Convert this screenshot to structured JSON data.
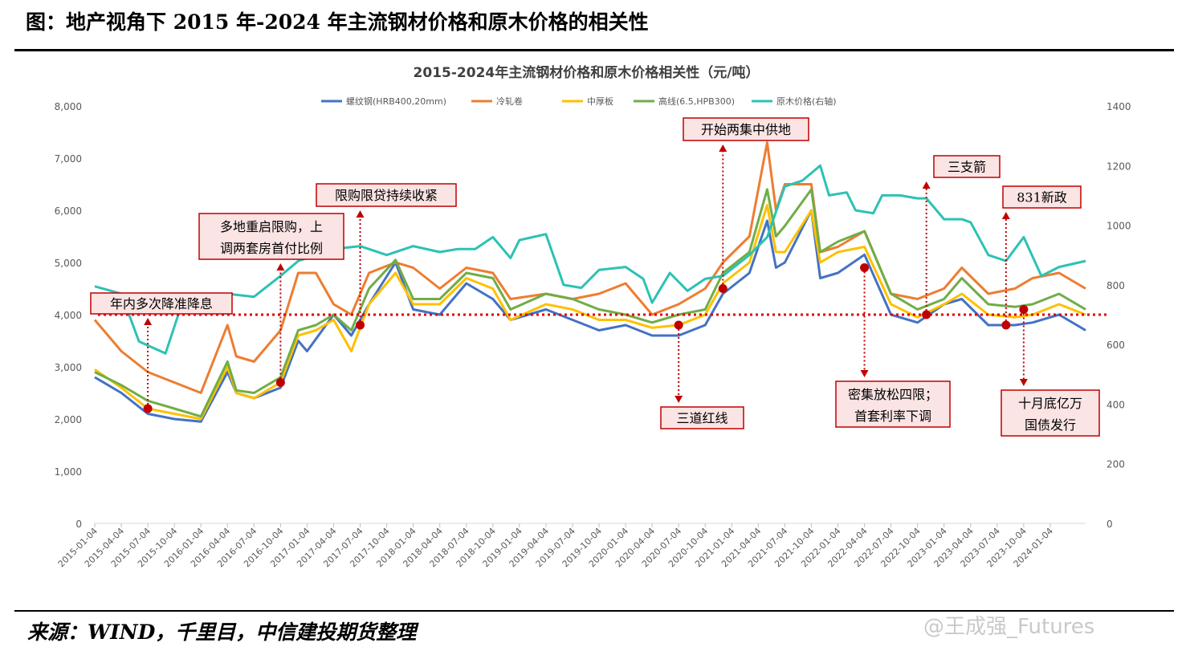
{
  "header": {
    "figure_title": "图：地产视角下 2015 年-2024 年主流钢材价格和原木价格的相关性",
    "source": "来源：WIND，千里目，中信建投期货整理",
    "watermark": "@王成强_Futures"
  },
  "chart_data": {
    "type": "line",
    "title": "2015-2024年主流钢材价格和原木价格相关性（元/吨）",
    "x_ticks": [
      "2015-01-04",
      "2015-04-04",
      "2015-07-04",
      "2015-10-04",
      "2016-01-04",
      "2016-04-04",
      "2016-07-04",
      "2016-10-04",
      "2017-01-04",
      "2017-04-04",
      "2017-07-04",
      "2017-10-04",
      "2018-01-04",
      "2018-04-04",
      "2018-07-04",
      "2018-10-04",
      "2019-01-04",
      "2019-04-04",
      "2019-07-04",
      "2019-10-04",
      "2020-01-04",
      "2020-04-04",
      "2020-07-04",
      "2020-10-04",
      "2021-01-04",
      "2021-04-04",
      "2021-07-04",
      "2021-10-04",
      "2022-01-04",
      "2022-04-04",
      "2022-07-04",
      "2022-10-04",
      "2023-01-04",
      "2023-04-04",
      "2023-07-04",
      "2023-10-04",
      "2024-01-04"
    ],
    "y_left": {
      "min": 0,
      "max": 8000,
      "ticks": [
        "0",
        "1,000",
        "2,000",
        "3,000",
        "4,000",
        "5,000",
        "6,000",
        "7,000",
        "8,000"
      ]
    },
    "y_right": {
      "min": 0,
      "max": 1400,
      "ticks": [
        "0",
        "200",
        "400",
        "600",
        "800",
        "1000",
        "1200",
        "1400"
      ]
    },
    "series": [
      {
        "name": "螺纹钢(HRB400,20mm)",
        "color": "#4472c4",
        "axis": "left",
        "x": [
          "2015-01",
          "2015-04",
          "2015-07",
          "2015-10",
          "2016-01",
          "2016-04",
          "2016-05",
          "2016-07",
          "2016-10",
          "2016-12",
          "2017-01",
          "2017-04",
          "2017-06",
          "2017-08",
          "2017-11",
          "2018-01",
          "2018-04",
          "2018-07",
          "2018-10",
          "2018-12",
          "2019-04",
          "2019-07",
          "2019-10",
          "2020-01",
          "2020-04",
          "2020-07",
          "2020-10",
          "2020-12",
          "2021-03",
          "2021-05",
          "2021-06",
          "2021-07",
          "2021-10",
          "2021-11",
          "2022-01",
          "2022-04",
          "2022-07",
          "2022-10",
          "2023-01",
          "2023-03",
          "2023-06",
          "2023-09",
          "2023-11",
          "2024-02",
          "2024-05"
        ],
        "y": [
          2800,
          2500,
          2100,
          2000,
          1950,
          2900,
          2500,
          2400,
          2600,
          3500,
          3300,
          4000,
          3600,
          4200,
          5000,
          4100,
          4000,
          4600,
          4300,
          3900,
          4100,
          3900,
          3700,
          3800,
          3600,
          3600,
          3800,
          4400,
          4800,
          5800,
          4900,
          5000,
          6000,
          4700,
          4800,
          5150,
          4000,
          3850,
          4200,
          4300,
          3800,
          3800,
          3850,
          4000,
          3700
        ]
      },
      {
        "name": "冷轧卷",
        "color": "#ed7d31",
        "axis": "left",
        "x": [
          "2015-01",
          "2015-04",
          "2015-07",
          "2015-10",
          "2016-01",
          "2016-04",
          "2016-05",
          "2016-07",
          "2016-10",
          "2016-12",
          "2017-02",
          "2017-04",
          "2017-06",
          "2017-08",
          "2017-11",
          "2018-01",
          "2018-04",
          "2018-07",
          "2018-10",
          "2018-12",
          "2019-04",
          "2019-07",
          "2019-10",
          "2020-01",
          "2020-04",
          "2020-07",
          "2020-10",
          "2020-12",
          "2021-03",
          "2021-05",
          "2021-06",
          "2021-07",
          "2021-10",
          "2021-11",
          "2022-01",
          "2022-04",
          "2022-07",
          "2022-10",
          "2023-01",
          "2023-03",
          "2023-06",
          "2023-09",
          "2023-11",
          "2024-02",
          "2024-05"
        ],
        "y": [
          3900,
          3300,
          2900,
          2700,
          2500,
          3800,
          3200,
          3100,
          3700,
          4800,
          4800,
          4200,
          4000,
          4800,
          5000,
          4900,
          4500,
          4900,
          4800,
          4300,
          4400,
          4300,
          4400,
          4600,
          4000,
          4200,
          4500,
          5000,
          5500,
          7300,
          6000,
          6500,
          6500,
          5200,
          5300,
          5600,
          4400,
          4300,
          4500,
          4900,
          4400,
          4500,
          4700,
          4800,
          4500
        ]
      },
      {
        "name": "中厚板",
        "color": "#ffc000",
        "axis": "left",
        "x": [
          "2015-01",
          "2015-04",
          "2015-07",
          "2015-10",
          "2016-01",
          "2016-04",
          "2016-05",
          "2016-07",
          "2016-10",
          "2016-12",
          "2017-02",
          "2017-04",
          "2017-06",
          "2017-08",
          "2017-11",
          "2018-01",
          "2018-04",
          "2018-07",
          "2018-10",
          "2018-12",
          "2019-04",
          "2019-07",
          "2019-10",
          "2020-01",
          "2020-04",
          "2020-07",
          "2020-10",
          "2020-12",
          "2021-03",
          "2021-05",
          "2021-06",
          "2021-07",
          "2021-10",
          "2021-11",
          "2022-01",
          "2022-04",
          "2022-07",
          "2022-10",
          "2023-01",
          "2023-03",
          "2023-06",
          "2023-09",
          "2023-11",
          "2024-02",
          "2024-05"
        ],
        "y": [
          2950,
          2600,
          2200,
          2100,
          2000,
          3000,
          2500,
          2400,
          2700,
          3600,
          3700,
          3900,
          3300,
          4200,
          4800,
          4200,
          4200,
          4700,
          4500,
          3900,
          4200,
          4100,
          3900,
          3900,
          3750,
          3800,
          4000,
          4600,
          5000,
          6100,
          5200,
          5200,
          6000,
          5000,
          5200,
          5300,
          4200,
          3950,
          4200,
          4400,
          4000,
          3950,
          4000,
          4200,
          4000
        ]
      },
      {
        "name": "高线(6.5,HPB300)",
        "color": "#70ad47",
        "axis": "left",
        "x": [
          "2015-01",
          "2015-04",
          "2015-07",
          "2015-10",
          "2016-01",
          "2016-04",
          "2016-05",
          "2016-07",
          "2016-10",
          "2016-12",
          "2017-02",
          "2017-04",
          "2017-06",
          "2017-08",
          "2017-11",
          "2018-01",
          "2018-04",
          "2018-07",
          "2018-10",
          "2018-12",
          "2019-04",
          "2019-07",
          "2019-10",
          "2020-01",
          "2020-04",
          "2020-07",
          "2020-10",
          "2020-12",
          "2021-03",
          "2021-05",
          "2021-06",
          "2021-07",
          "2021-10",
          "2021-11",
          "2022-01",
          "2022-04",
          "2022-07",
          "2022-10",
          "2023-01",
          "2023-03",
          "2023-06",
          "2023-09",
          "2023-11",
          "2024-02",
          "2024-05"
        ],
        "y": [
          2900,
          2650,
          2350,
          2200,
          2050,
          3100,
          2550,
          2500,
          2800,
          3700,
          3800,
          4000,
          3700,
          4500,
          5050,
          4300,
          4300,
          4800,
          4700,
          4100,
          4400,
          4300,
          4100,
          4000,
          3850,
          4000,
          4100,
          4800,
          5200,
          6400,
          5500,
          5700,
          6400,
          5200,
          5400,
          5600,
          4400,
          4100,
          4300,
          4700,
          4200,
          4150,
          4200,
          4400,
          4100
        ]
      },
      {
        "name": "原木价格(右轴)",
        "color": "#2cc2b4",
        "axis": "right",
        "x": [
          "2015-01",
          "2015-04",
          "2015-06",
          "2015-09",
          "2015-11",
          "2016-01",
          "2016-04",
          "2016-07",
          "2016-10",
          "2016-12",
          "2017-04",
          "2017-07",
          "2017-10",
          "2018-01",
          "2018-04",
          "2018-06",
          "2018-08",
          "2018-10",
          "2018-12",
          "2019-01",
          "2019-04",
          "2019-06",
          "2019-08",
          "2019-10",
          "2020-01",
          "2020-03",
          "2020-04",
          "2020-06",
          "2020-08",
          "2020-10",
          "2020-12",
          "2021-03",
          "2021-05",
          "2021-07",
          "2021-09",
          "2021-11",
          "2021-12",
          "2022-02",
          "2022-03",
          "2022-05",
          "2022-06",
          "2022-08",
          "2022-10",
          "2022-11",
          "2023-01",
          "2023-03",
          "2023-04",
          "2023-06",
          "2023-08",
          "2023-10",
          "2023-12",
          "2024-02",
          "2024-05"
        ],
        "y": [
          795,
          770,
          610,
          570,
          750,
          760,
          770,
          760,
          830,
          880,
          920,
          930,
          900,
          930,
          910,
          920,
          920,
          960,
          890,
          950,
          970,
          800,
          790,
          850,
          860,
          820,
          740,
          840,
          780,
          820,
          830,
          900,
          960,
          1130,
          1150,
          1200,
          1100,
          1110,
          1050,
          1040,
          1100,
          1100,
          1090,
          1090,
          1020,
          1020,
          1010,
          900,
          880,
          960,
          830,
          860,
          880
        ]
      }
    ],
    "reference_line": {
      "value": 4000,
      "axis": "left",
      "color": "#e00000"
    },
    "annotations": [
      {
        "text": "年内多次降准降息",
        "x": "2015-07",
        "value": 2200,
        "arrow": "up"
      },
      {
        "text": [
          "多地重启限购，上",
          "调两套房首付比例"
        ],
        "x": "2016-10",
        "value": 2700,
        "arrow": "up"
      },
      {
        "text": "限购限贷持续收紧",
        "x": "2017-07",
        "value": 3800,
        "arrow": "up"
      },
      {
        "text": "三道红线",
        "x": "2020-07",
        "value": 3800,
        "arrow": "down"
      },
      {
        "text": "开始两集中供地",
        "x": "2020-12",
        "value": 4500,
        "arrow": "up"
      },
      {
        "text": [
          "密集放松四限；",
          "首套利率下调"
        ],
        "x": "2022-04",
        "value": 4900,
        "arrow": "down"
      },
      {
        "text": "三支箭",
        "x": "2022-11",
        "value": 4000,
        "arrow": "up"
      },
      {
        "text": "831新政",
        "x": "2023-08",
        "value": 3800,
        "arrow": "up"
      },
      {
        "text": [
          "十月底亿万",
          "国债发行"
        ],
        "x": "2023-10",
        "value": 4100,
        "arrow": "down"
      }
    ],
    "legend_position": "top",
    "grid": false
  }
}
